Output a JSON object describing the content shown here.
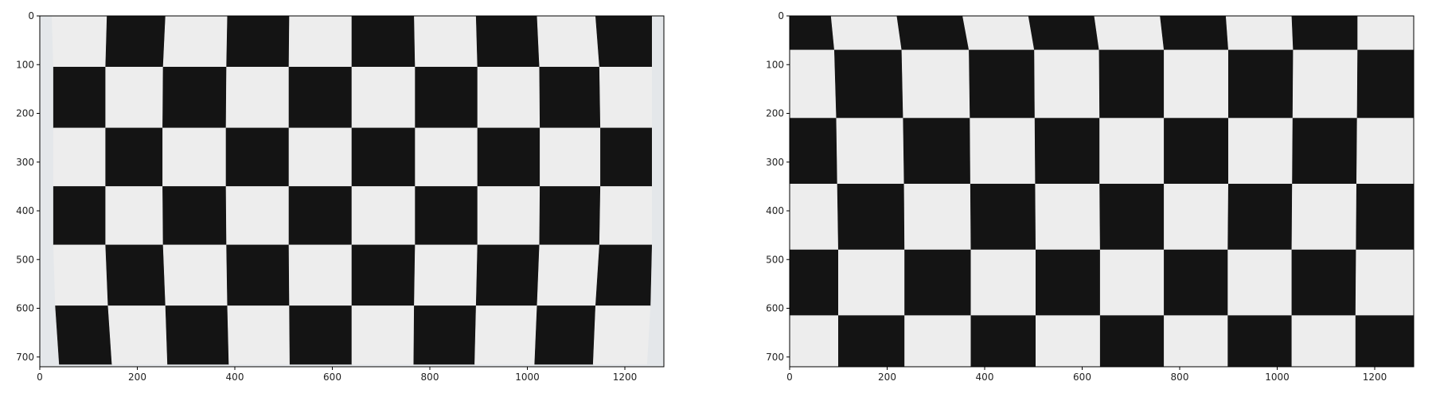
{
  "panels": [
    {
      "id": "distorted",
      "x_ticks": [
        "0",
        "200",
        "400",
        "600",
        "800",
        "1000",
        "1200"
      ],
      "y_ticks": [
        "0",
        "100",
        "200",
        "300",
        "400",
        "500",
        "600",
        "700"
      ],
      "x_range": [
        0,
        1280
      ],
      "y_range": [
        720,
        0
      ]
    },
    {
      "id": "undistorted",
      "x_ticks": [
        "0",
        "200",
        "400",
        "600",
        "800",
        "1000",
        "1200"
      ],
      "y_ticks": [
        "0",
        "100",
        "200",
        "300",
        "400",
        "500",
        "600",
        "700"
      ],
      "x_range": [
        0,
        1280
      ],
      "y_range": [
        720,
        0
      ]
    }
  ],
  "colors": {
    "dark_square": "#141414",
    "light_square": "#ededed",
    "axis": "#000000"
  }
}
